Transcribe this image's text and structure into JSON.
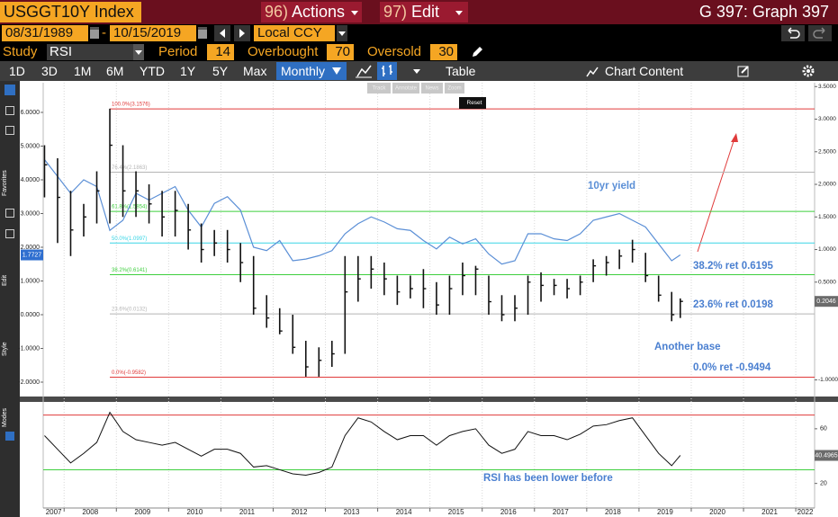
{
  "header": {
    "ticker": "USGGT10Y Index",
    "actions_code": "96)",
    "actions": "Actions",
    "edit_code": "97)",
    "edit": "Edit",
    "title": "G 397: Graph 397"
  },
  "controls": {
    "start": "08/31/1989",
    "date_separator": "-",
    "end": "10/15/2019",
    "currency": "Local CCY",
    "study_label": "Study",
    "study": "RSI",
    "period_label": "Period",
    "period": 14,
    "overbought_label": "Overbought",
    "overbought": 70,
    "oversold_label": "Oversold",
    "oversold": 30
  },
  "toolbar": {
    "ranges": [
      "1D",
      "3D",
      "1M",
      "6M",
      "YTD",
      "1Y",
      "5Y",
      "Max"
    ],
    "frequency": "Monthly",
    "table": "Table",
    "chart_content": "Chart Content"
  },
  "chart_tools": [
    "Track",
    "Annotate",
    "News",
    "Zoom"
  ],
  "reset": "Reset",
  "sidebar": [
    "Favorites",
    "Edit",
    "Style",
    "Modes"
  ],
  "chart_data": [
    {
      "type": "ohlc",
      "x": [
        2007.625,
        2007.875,
        2008.125,
        2008.375,
        2008.625,
        2008.875,
        2009.125,
        2009.375,
        2009.625,
        2009.875,
        2010.125,
        2010.375,
        2010.625,
        2010.875,
        2011.125,
        2011.375,
        2011.625,
        2011.875,
        2012.125,
        2012.375,
        2012.625,
        2012.875,
        2013.125,
        2013.375,
        2013.625,
        2013.875,
        2014.125,
        2014.375,
        2014.625,
        2014.875,
        2015.125,
        2015.375,
        2015.625,
        2015.875,
        2016.125,
        2016.375,
        2016.625,
        2016.875,
        2017.125,
        2017.375,
        2017.625,
        2017.875,
        2018.125,
        2018.375,
        2018.625,
        2018.875,
        2019.125,
        2019.375,
        2019.625,
        2019.79
      ],
      "xlim": [
        2007.6,
        2022.36
      ],
      "ylim": [
        -2.4,
        6.88
      ],
      "yticks": [
        {
          "value": 6,
          "label": "6.0000"
        },
        {
          "value": 5,
          "label": "5.0000"
        },
        {
          "value": 4,
          "label": "4.0000"
        },
        {
          "value": 3,
          "label": "3.0000"
        },
        {
          "value": 2,
          "label": "2.0000"
        },
        {
          "value": 1,
          "label": "1.0000"
        },
        {
          "value": 0,
          "label": "0.0000"
        },
        {
          "value": -1,
          "label": "-1.0000"
        },
        {
          "value": -2,
          "label": "-2.0000"
        }
      ],
      "y2lim": [
        -1.241,
        3.559
      ],
      "y2ticks": [
        {
          "value": 3.5,
          "label": "3.5000"
        },
        {
          "value": 3,
          "label": "3.0000"
        },
        {
          "value": 2.5,
          "label": "2.5000"
        },
        {
          "value": 2,
          "label": "2.0000"
        },
        {
          "value": 1.5,
          "label": "1.5000"
        },
        {
          "value": 1,
          "label": "1.0000"
        },
        {
          "value": 0.5,
          "label": "0.5000"
        },
        {
          "value": -1,
          "label": "-1.0000"
        }
      ],
      "series": [
        {
          "type": "line",
          "color": "#5b8fd6",
          "values": [
            4.6,
            4.1,
            3.6,
            4.0,
            3.8,
            2.5,
            2.8,
            3.6,
            3.4,
            3.6,
            3.8,
            3.1,
            2.6,
            3.3,
            3.5,
            3.1,
            2.0,
            1.9,
            2.2,
            1.6,
            1.65,
            1.75,
            1.9,
            2.4,
            2.7,
            2.9,
            2.75,
            2.55,
            2.5,
            2.2,
            1.95,
            2.3,
            2.1,
            2.25,
            1.8,
            1.5,
            1.6,
            2.4,
            2.4,
            2.25,
            2.2,
            2.4,
            2.8,
            2.9,
            3.0,
            2.8,
            2.6,
            2.1,
            1.6,
            1.7727
          ]
        },
        {
          "type": "ohlc",
          "axis": "y2",
          "color": "#111111",
          "high": [
            2.6,
            2.4,
            1.9,
            1.7,
            2.2,
            3.16,
            2.6,
            2.2,
            2.0,
            1.9,
            1.9,
            1.7,
            1.4,
            1.3,
            1.3,
            1.1,
            0.9,
            0.3,
            0.1,
            0.0,
            -0.4,
            -0.5,
            -0.4,
            0.9,
            0.9,
            0.9,
            0.8,
            0.6,
            0.6,
            0.7,
            0.5,
            0.6,
            0.8,
            0.75,
            0.6,
            0.3,
            0.3,
            0.6,
            0.65,
            0.55,
            0.55,
            0.6,
            0.85,
            0.9,
            1.0,
            1.15,
            0.95,
            0.6,
            0.35,
            0.25
          ],
          "low": [
            1.8,
            1.1,
            0.9,
            1.2,
            1.4,
            1.4,
            1.5,
            1.5,
            1.4,
            1.2,
            1.2,
            1.0,
            0.8,
            0.9,
            0.8,
            0.5,
            0.0,
            -0.2,
            -0.3,
            -0.6,
            -0.95,
            -0.95,
            -0.8,
            -0.6,
            0.2,
            0.4,
            0.3,
            0.15,
            0.25,
            0.1,
            0.0,
            0.0,
            0.3,
            0.3,
            0.0,
            -0.1,
            -0.1,
            0.0,
            0.2,
            0.3,
            0.25,
            0.3,
            0.5,
            0.6,
            0.7,
            0.8,
            0.5,
            0.2,
            -0.1,
            -0.05
          ],
          "values": [
            2.3,
            1.8,
            1.3,
            1.5,
            1.9,
            2.6,
            1.9,
            1.9,
            1.7,
            1.5,
            1.6,
            1.3,
            1.0,
            1.1,
            1.0,
            0.8,
            0.1,
            -0.05,
            -0.25,
            -0.5,
            -0.8,
            -0.7,
            -0.6,
            0.35,
            0.55,
            0.7,
            0.55,
            0.35,
            0.4,
            0.4,
            0.15,
            0.4,
            0.6,
            0.7,
            0.2,
            0.0,
            0.1,
            0.5,
            0.45,
            0.45,
            0.4,
            0.5,
            0.75,
            0.8,
            0.9,
            1.0,
            0.6,
            0.3,
            0.0,
            0.2046
          ]
        }
      ],
      "fib_levels": [
        {
          "label": "100.0%(3.1576)",
          "value": 3.1576,
          "color": "#e03a3a"
        },
        {
          "label": "76.4%(2.1863)",
          "value": 2.1863,
          "color": "#b5b5b5"
        },
        {
          "label": "61.8%(1.5854)",
          "value": 1.5854,
          "color": "#3ecf3e"
        },
        {
          "label": "50.0%(1.0997)",
          "value": 1.0997,
          "color": "#3ad6e6"
        },
        {
          "label": "38.2%(0.6141)",
          "value": 0.6141,
          "color": "#3ecf3e"
        },
        {
          "label": "23.6%(0.0132)",
          "value": 0.0132,
          "color": "#b5b5b5"
        },
        {
          "label": "0.0%(-0.9582)",
          "value": -0.9582,
          "color": "#e03a3a"
        }
      ],
      "annotations": [
        "10yr yield",
        "38.2% ret 0.6195",
        "23.6% ret 0.0198",
        "Another base",
        "0.0% ret -0.9494"
      ]
    },
    {
      "type": "line",
      "x": [
        2007.625,
        2007.875,
        2008.125,
        2008.375,
        2008.625,
        2008.875,
        2009.125,
        2009.375,
        2009.625,
        2009.875,
        2010.125,
        2010.375,
        2010.625,
        2010.875,
        2011.125,
        2011.375,
        2011.625,
        2011.875,
        2012.125,
        2012.375,
        2012.625,
        2012.875,
        2013.125,
        2013.375,
        2013.625,
        2013.875,
        2014.125,
        2014.375,
        2014.625,
        2014.875,
        2015.125,
        2015.375,
        2015.625,
        2015.875,
        2016.125,
        2016.375,
        2016.625,
        2016.875,
        2017.125,
        2017.375,
        2017.625,
        2017.875,
        2018.125,
        2018.375,
        2018.625,
        2018.875,
        2019.125,
        2019.375,
        2019.625,
        2019.79
      ],
      "xlim": [
        2007.6,
        2022.36
      ],
      "xticks": [
        2007,
        2008,
        2009,
        2010,
        2011,
        2012,
        2013,
        2014,
        2015,
        2016,
        2017,
        2018,
        2019,
        2020,
        2021,
        2022
      ],
      "ylim": [
        2,
        79
      ],
      "yticks": [
        60,
        20
      ],
      "series": [
        {
          "color": "#111111",
          "values": [
            55,
            45,
            35,
            42,
            50,
            72,
            58,
            52,
            50,
            48,
            50,
            45,
            40,
            45,
            45,
            42,
            32,
            33,
            30,
            27,
            26,
            28,
            32,
            55,
            68,
            65,
            58,
            52,
            55,
            55,
            48,
            55,
            58,
            60,
            48,
            42,
            45,
            58,
            55,
            55,
            52,
            56,
            62,
            63,
            66,
            68,
            55,
            42,
            33,
            40.4965
          ]
        }
      ],
      "annotations": [
        "RSI has been lower before"
      ]
    }
  ]
}
